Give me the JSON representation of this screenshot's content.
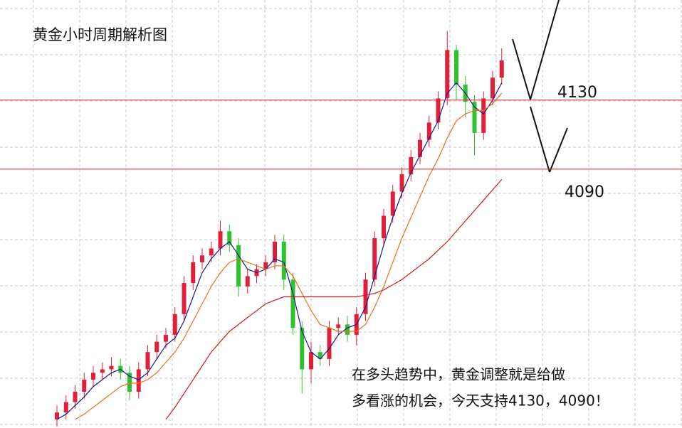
{
  "chart_data": {
    "type": "candlestick",
    "title": "黄金小时周期解析图",
    "annotation": [
      "在多头趋势中，黄金调整就是给做",
      "多看涨的机会，今天支持4130，4090！"
    ],
    "ylim": [
      3940,
      4188
    ],
    "grid": true,
    "up_color": "#e0203a",
    "down_color": "#2fc22f",
    "level_color": "#e02828",
    "levels": [
      4130,
      4090
    ],
    "open": [
      3945,
      3949,
      3955,
      3961,
      3968,
      3972,
      3974,
      3976,
      3972,
      3961,
      3974,
      3984,
      3990,
      3994,
      4006,
      4024,
      4036,
      4040,
      4044,
      4054,
      4046,
      4022,
      4028,
      4032,
      4036,
      4048,
      4026,
      3998,
      3974,
      3984,
      3980,
      3998,
      4000,
      3994,
      4006,
      4026,
      4050,
      4063,
      4077,
      4087,
      4097,
      4107,
      4117,
      4131,
      4159,
      4139,
      4129,
      4111,
      4131,
      4143
    ],
    "high": [
      3953,
      3959,
      3965,
      3972,
      3976,
      3978,
      3981,
      3980,
      3976,
      3978,
      3988,
      3994,
      3998,
      4010,
      4028,
      4040,
      4044,
      4048,
      4060,
      4058,
      4050,
      4032,
      4035,
      4040,
      4052,
      4052,
      4030,
      4002,
      3990,
      3988,
      4002,
      4004,
      4005,
      4010,
      4030,
      4054,
      4067,
      4081,
      4091,
      4101,
      4111,
      4121,
      4135,
      4170,
      4162,
      4144,
      4133,
      4135,
      4147,
      4160
    ],
    "low": [
      3941,
      3945,
      3951,
      3957,
      3964,
      3968,
      3970,
      3968,
      3956,
      3957,
      3970,
      3980,
      3986,
      3990,
      4002,
      4020,
      4032,
      4036,
      4040,
      4042,
      4016,
      4018,
      4024,
      4028,
      4032,
      4020,
      3994,
      3960,
      3966,
      3976,
      3976,
      3994,
      3990,
      3988,
      4002,
      4022,
      4046,
      4059,
      4073,
      4083,
      4093,
      4103,
      4113,
      4127,
      4130,
      4120,
      4098,
      4107,
      4127,
      4139
    ],
    "close": [
      3949,
      3955,
      3961,
      3968,
      3972,
      3974,
      3976,
      3972,
      3961,
      3974,
      3984,
      3990,
      3994,
      4006,
      4024,
      4036,
      4040,
      4044,
      4054,
      4046,
      4022,
      4028,
      4032,
      4036,
      4048,
      4026,
      3998,
      3974,
      3984,
      3980,
      3998,
      4000,
      3994,
      4006,
      4026,
      4050,
      4063,
      4077,
      4087,
      4097,
      4107,
      4117,
      4131,
      4159,
      4139,
      4129,
      4111,
      4131,
      4143,
      4153
    ],
    "ma": [
      {
        "color": "#1a1a8c",
        "values": [
          3945,
          3948,
          3953,
          3958,
          3964,
          3968,
          3972,
          3974,
          3970,
          3968,
          3972,
          3980,
          3988,
          3992,
          4002,
          4016,
          4030,
          4038,
          4044,
          4048,
          4040,
          4032,
          4030,
          4032,
          4038,
          4036,
          4018,
          3996,
          3984,
          3980,
          3986,
          3994,
          3998,
          4000,
          4010,
          4028,
          4046,
          4062,
          4076,
          4088,
          4098,
          4108,
          4118,
          4134,
          4140,
          4134,
          4126,
          4122,
          4130,
          4140
        ]
      },
      {
        "color": "#e8701a",
        "values": [
          null,
          null,
          3945,
          3948,
          3952,
          3956,
          3960,
          3964,
          3966,
          3966,
          3968,
          3972,
          3978,
          3984,
          3992,
          4002,
          4012,
          4022,
          4030,
          4036,
          4038,
          4036,
          4034,
          4032,
          4034,
          4034,
          4028,
          4018,
          4008,
          4000,
          3998,
          3996,
          3996,
          3996,
          4000,
          4010,
          4022,
          4036,
          4050,
          4062,
          4074,
          4086,
          4096,
          4108,
          4118,
          4122,
          4124,
          4124,
          4128,
          4134
        ]
      },
      {
        "color": "#d01818",
        "values": [
          null,
          null,
          null,
          null,
          null,
          null,
          null,
          null,
          null,
          null,
          null,
          null,
          3945,
          3952,
          3960,
          3968,
          3976,
          3984,
          3990,
          3996,
          4000,
          4004,
          4008,
          4012,
          4014,
          4016,
          4016,
          4016,
          4016,
          4016,
          4016,
          4016,
          4016,
          4016,
          4017,
          4018,
          4020,
          4023,
          4026,
          4030,
          4034,
          4038,
          4043,
          4048,
          4054,
          4060,
          4066,
          4072,
          4078,
          4084
        ]
      }
    ]
  }
}
